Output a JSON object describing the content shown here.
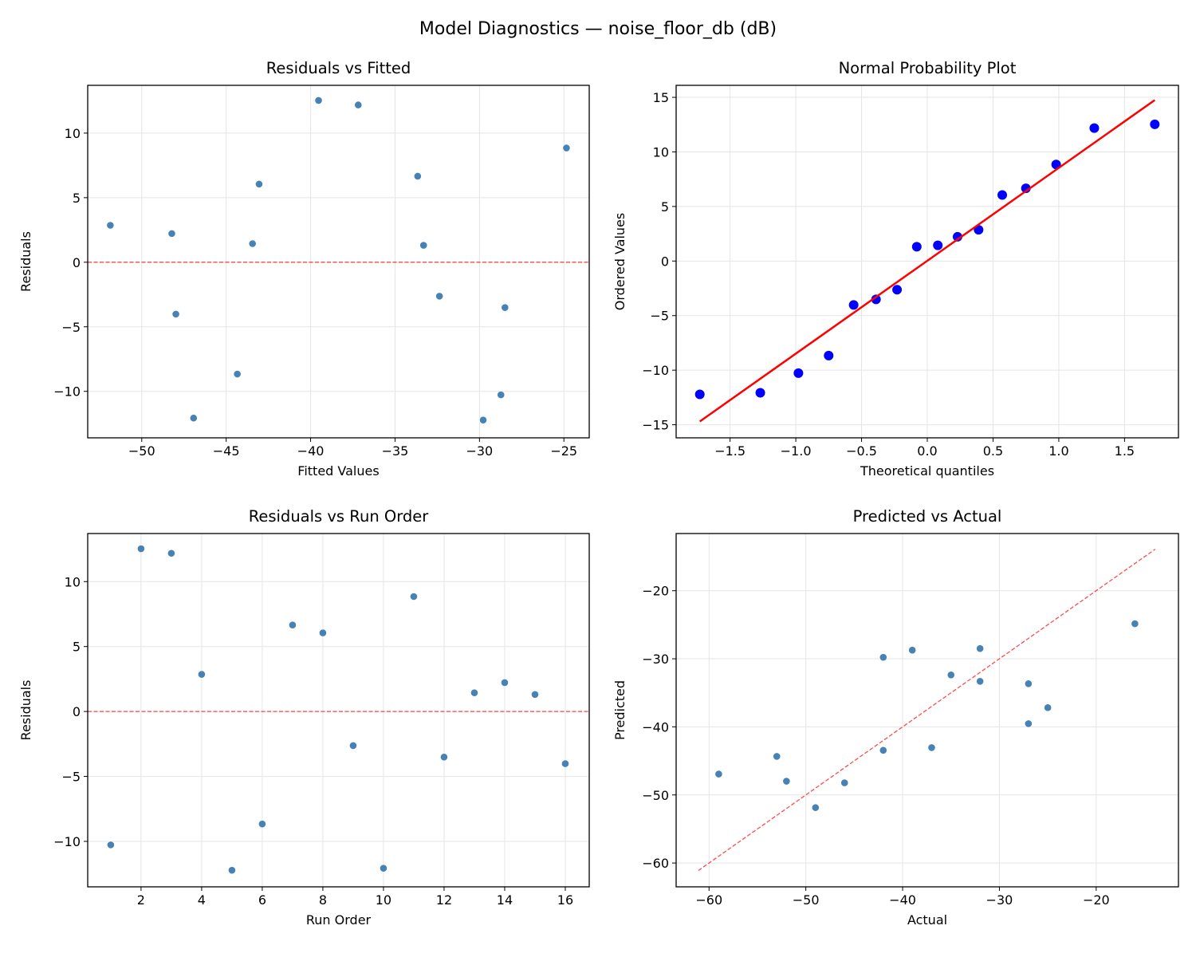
{
  "suptitle": "Model Diagnostics — noise_floor_db (dB)",
  "colors": {
    "points": "#4682b4",
    "qq_points": "#0000ff",
    "reference": "#ff0000",
    "grid": "#e5e5e5"
  },
  "chart_data": [
    {
      "type": "scatter",
      "title": "Residuals vs Fitted",
      "xlabel": "Fitted Values",
      "ylabel": "Residuals",
      "xlim": [
        -53.2,
        -23.5
      ],
      "ylim": [
        -13.6,
        13.7
      ],
      "xticks": [
        -50,
        -45,
        -40,
        -35,
        -30,
        -25
      ],
      "xtick_labels": [
        "−50",
        "−45",
        "−40",
        "−35",
        "−30",
        "−25"
      ],
      "yticks": [
        -10,
        -5,
        0,
        5,
        10
      ],
      "ytick_labels": [
        "−10",
        "−5",
        "0",
        "5",
        "10"
      ],
      "grid": true,
      "reference_line": {
        "kind": "horizontal",
        "y": 0,
        "style": "dashed"
      },
      "x": [
        -28.73,
        -39.53,
        -37.18,
        -51.86,
        -29.78,
        -44.34,
        -33.66,
        -43.05,
        -32.37,
        -46.93,
        -24.85,
        -28.49,
        -43.44,
        -48.22,
        -33.31,
        -47.98
      ],
      "y": [
        -10.27,
        12.53,
        12.18,
        2.86,
        -12.22,
        -8.66,
        6.66,
        6.05,
        -2.63,
        -12.07,
        8.85,
        -3.51,
        1.44,
        2.22,
        1.31,
        -4.02
      ]
    },
    {
      "type": "scatter",
      "title": "Normal Probability Plot",
      "xlabel": "Theoretical quantiles",
      "ylabel": "Ordered Values",
      "xlim": [
        -1.91,
        1.91
      ],
      "ylim": [
        -16.2,
        16.1
      ],
      "xticks": [
        -1.5,
        -1.0,
        -0.5,
        0.0,
        0.5,
        1.0,
        1.5
      ],
      "xtick_labels": [
        "−1.5",
        "−1.0",
        "−0.5",
        "0.0",
        "0.5",
        "1.0",
        "1.5"
      ],
      "yticks": [
        -15,
        -10,
        -5,
        0,
        5,
        10,
        15
      ],
      "ytick_labels": [
        "−15",
        "−10",
        "−5",
        "0",
        "5",
        "10",
        "15"
      ],
      "grid": true,
      "fit_line": {
        "x": [
          -1.73,
          1.73
        ],
        "y": [
          -14.7,
          14.75
        ]
      },
      "x": [
        -1.73,
        -1.27,
        -0.98,
        -0.75,
        -0.56,
        -0.39,
        -0.23,
        -0.08,
        0.08,
        0.23,
        0.39,
        0.57,
        0.75,
        0.98,
        1.27,
        1.73
      ],
      "y": [
        -12.22,
        -12.07,
        -10.27,
        -8.66,
        -4.02,
        -3.51,
        -2.63,
        1.31,
        1.44,
        2.22,
        2.86,
        6.05,
        6.66,
        8.85,
        12.18,
        12.53
      ]
    },
    {
      "type": "scatter",
      "title": "Residuals vs Run Order",
      "xlabel": "Run Order",
      "ylabel": "Residuals",
      "xlim": [
        0.24,
        16.79
      ],
      "ylim": [
        -13.5,
        13.7
      ],
      "xticks": [
        2,
        4,
        6,
        8,
        10,
        12,
        14,
        16
      ],
      "xtick_labels": [
        "2",
        "4",
        "6",
        "8",
        "10",
        "12",
        "14",
        "16"
      ],
      "yticks": [
        -10,
        -5,
        0,
        5,
        10
      ],
      "ytick_labels": [
        "−10",
        "−5",
        "0",
        "5",
        "10"
      ],
      "grid": true,
      "reference_line": {
        "kind": "horizontal",
        "y": 0,
        "style": "dashed"
      },
      "x": [
        1,
        2,
        3,
        4,
        5,
        6,
        7,
        8,
        9,
        10,
        11,
        12,
        13,
        14,
        15,
        16
      ],
      "y": [
        -10.27,
        12.53,
        12.18,
        2.86,
        -12.22,
        -8.66,
        6.66,
        6.05,
        -2.63,
        -12.07,
        8.85,
        -3.51,
        1.44,
        2.22,
        1.31,
        -4.02
      ]
    },
    {
      "type": "scatter",
      "title": "Predicted vs Actual",
      "xlabel": "Actual",
      "ylabel": "Predicted",
      "xlim": [
        -63.4,
        -11.5
      ],
      "ylim": [
        -63.5,
        -11.6
      ],
      "xticks": [
        -60,
        -50,
        -40,
        -30,
        -20
      ],
      "xtick_labels": [
        "−60",
        "−50",
        "−40",
        "−30",
        "−20"
      ],
      "yticks": [
        -60,
        -50,
        -40,
        -30,
        -20
      ],
      "ytick_labels": [
        "−60",
        "−50",
        "−40",
        "−30",
        "−20"
      ],
      "grid": true,
      "reference_line": {
        "kind": "diagonal",
        "x": [
          -61.1,
          -13.9
        ],
        "y": [
          -61.1,
          -13.9
        ],
        "style": "dashed"
      },
      "x": [
        -39,
        -27,
        -25,
        -49,
        -42,
        -53,
        -27,
        -37,
        -35,
        -59,
        -16,
        -32,
        -42,
        -46,
        -32,
        -52
      ],
      "y": [
        -28.73,
        -39.53,
        -37.18,
        -51.86,
        -29.78,
        -44.34,
        -33.66,
        -43.05,
        -32.37,
        -46.93,
        -24.85,
        -28.49,
        -43.44,
        -48.22,
        -33.31,
        -47.98
      ]
    }
  ]
}
